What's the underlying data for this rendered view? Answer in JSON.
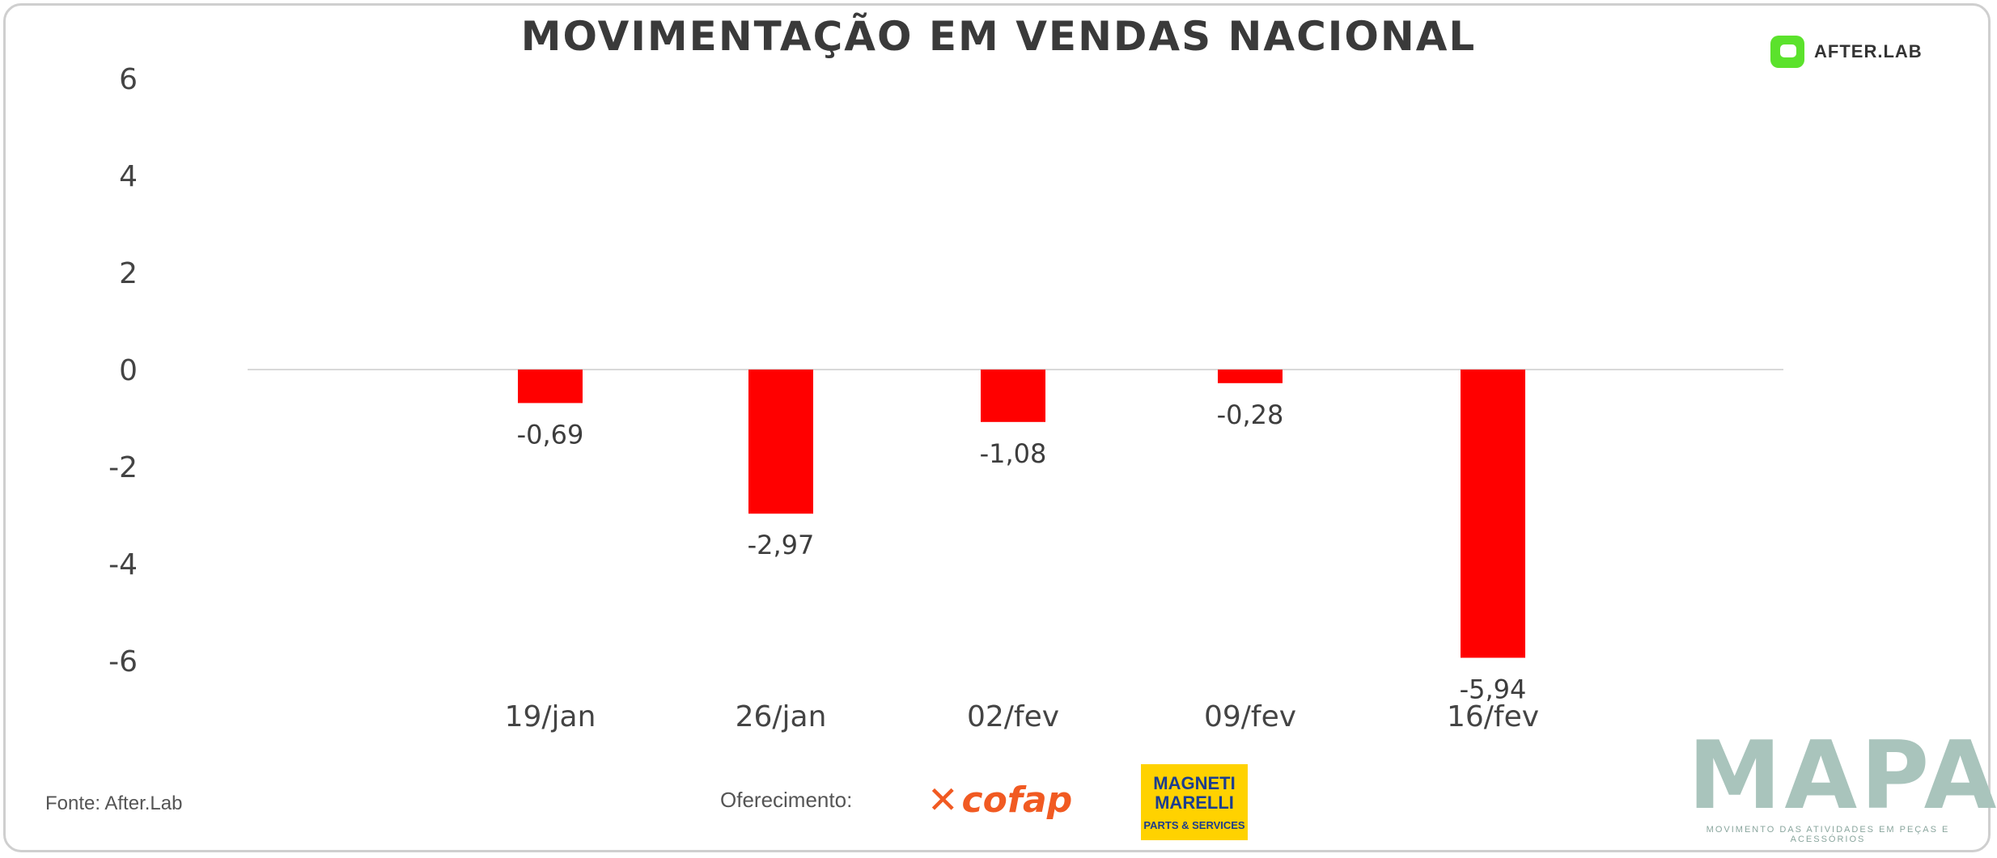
{
  "title": "MOVIMENTAÇÃO EM VENDAS NACIONAL",
  "brand": {
    "name": "AFTER.LAB",
    "color": "#5be22c"
  },
  "footer": {
    "source": "Fonte: After.Lab",
    "offered_by": "Oferecimento:",
    "sponsor_1": "cofap",
    "sponsor_2_line1": "MAGNETI",
    "sponsor_2_line2": "MARELLI",
    "sponsor_2_tagline": "PARTS & SERVICES",
    "publisher": "MAPA",
    "publisher_tagline": "MOVIMENTO DAS ATIVIDADES EM PEÇAS E ACESSÓRIOS"
  },
  "chart_data": {
    "type": "bar",
    "title": "MOVIMENTAÇÃO EM VENDAS NACIONAL",
    "categories": [
      "19/jan",
      "26/jan",
      "02/fev",
      "09/fev",
      "16/fev"
    ],
    "values": [
      -0.69,
      -2.97,
      -1.08,
      -0.28,
      -5.94
    ],
    "value_labels": [
      "-0,69",
      "-2,97",
      "-1,08",
      "-0,28",
      "-5,94"
    ],
    "yticks": [
      6,
      4,
      2,
      0,
      -2,
      -4,
      -6
    ],
    "ylim": [
      -6,
      6
    ],
    "bar_color": "#ff0000",
    "grid": false,
    "legend": "none"
  }
}
